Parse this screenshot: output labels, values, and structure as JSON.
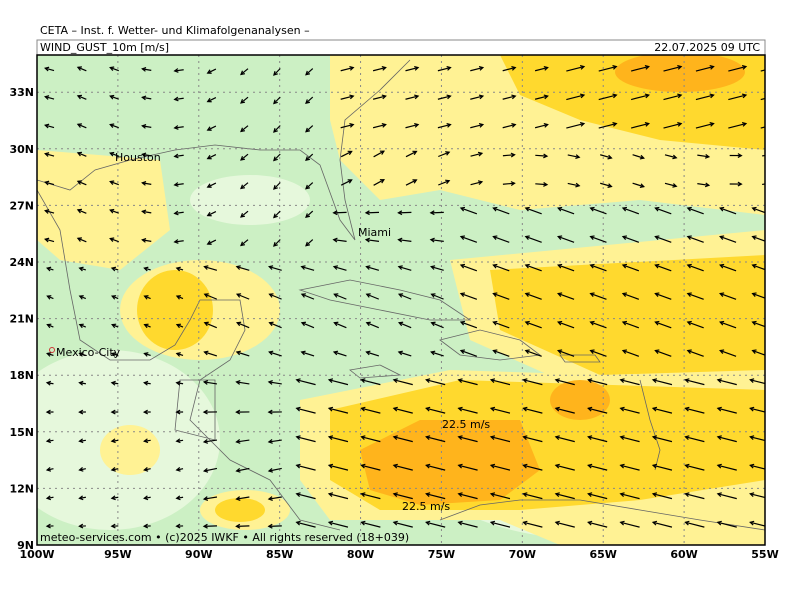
{
  "header": {
    "institute": "CETA – Inst. f. Wetter- und Klimafolgenanalysen –",
    "parameter": "WIND_GUST_10m [m/s]",
    "valid_time": "22.07.2025 09 UTC"
  },
  "x_labels": [
    "100W",
    "95W",
    "90W",
    "85W",
    "80W",
    "75W",
    "70W",
    "65W",
    "60W",
    "55W"
  ],
  "y_labels": [
    "9N",
    "12N",
    "15N",
    "18N",
    "21N",
    "24N",
    "27N",
    "30N",
    "33N"
  ],
  "cities": [
    "Houston",
    "Miami",
    "Mexico-City"
  ],
  "annotations": [
    "22.5 m/s",
    "22.5 m/s"
  ],
  "footer": "meteo-services.com • (c)2025 IWKF • All rights reserved (18+039)"
}
